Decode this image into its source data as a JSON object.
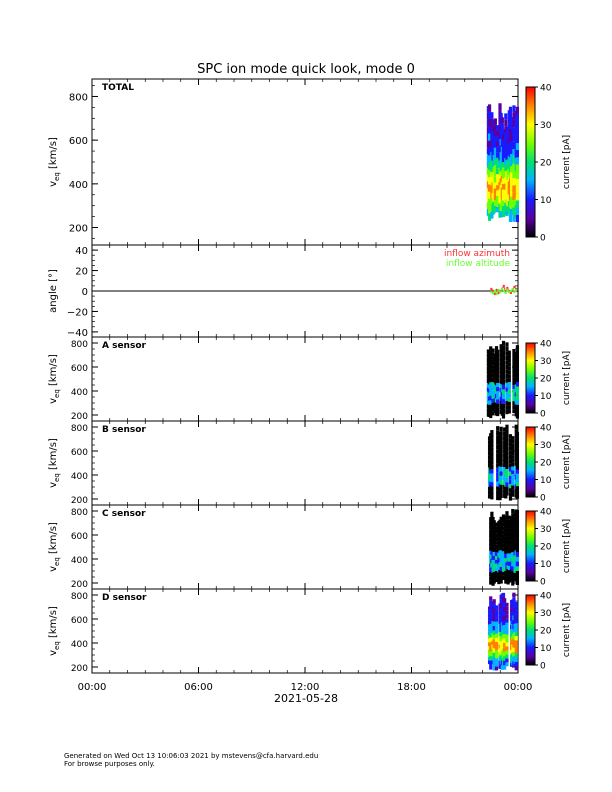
{
  "title": "SPC ion mode quick look, mode 0",
  "date_label": "2021-05-28",
  "footer": {
    "line1": "Generated on Wed Oct 13 10:06:03 2021 by mstevens@cfa.harvard.edu",
    "line2": "For browse purposes only."
  },
  "colorbar_label": "current [pA]",
  "colorbar_ticks": [
    "0",
    "10",
    "20",
    "30",
    "40"
  ],
  "chart_data": [
    {
      "type": "heatmap",
      "panel_label": "TOTAL",
      "ylabel": "v_eq [km/s]",
      "ylim": [
        120,
        880
      ],
      "yticks": [
        "200",
        "400",
        "600",
        "800"
      ],
      "xticks": [
        "00:00",
        "06:00",
        "12:00",
        "18:00",
        "00:00"
      ],
      "xlim_hours": [
        0,
        24
      ],
      "data_window_hours": [
        22.3,
        24.0
      ],
      "speed_band_km_s": [
        220,
        770
      ],
      "colorbar": {
        "min": 0,
        "max": 40,
        "unit": "pA"
      }
    },
    {
      "type": "line",
      "ylabel": "angle [°]",
      "ylim": [
        -45,
        45
      ],
      "yticks": [
        "−40",
        "−20",
        "0",
        "20",
        "40"
      ],
      "xticks": [
        "00:00",
        "06:00",
        "12:00",
        "18:00",
        "00:00"
      ],
      "series": [
        {
          "name": "inflow azimuth",
          "color": "#ff3333",
          "x_hours": [
            22.5,
            22.6,
            22.7,
            22.8,
            22.9,
            23.0,
            23.1,
            23.2,
            23.3,
            23.4,
            23.5,
            23.6,
            23.7,
            23.8,
            23.9
          ],
          "y_deg": [
            2,
            0,
            -3,
            1,
            -2,
            0,
            2,
            5,
            -1,
            3,
            0,
            -2,
            1,
            4,
            2
          ]
        },
        {
          "name": "inflow altitude",
          "color": "#66ff33",
          "x_hours": [
            22.5,
            22.6,
            22.7,
            22.8,
            22.9,
            23.0,
            23.1,
            23.2,
            23.3,
            23.4,
            23.5,
            23.6,
            23.7,
            23.8,
            23.9
          ],
          "y_deg": [
            -1,
            -2,
            0,
            -3,
            1,
            -1,
            2,
            0,
            -2,
            1,
            -1,
            0,
            2,
            -1,
            1
          ]
        }
      ]
    },
    {
      "type": "heatmap",
      "panel_label": "A sensor",
      "ylabel": "v_eq [km/s]",
      "ylim": [
        150,
        850
      ],
      "yticks": [
        "200",
        "400",
        "600",
        "800"
      ],
      "data_window_hours": [
        22.3,
        24.0
      ],
      "speed_band_km_s": [
        170,
        820
      ],
      "colorbar": {
        "min": 0,
        "max": 40,
        "unit": "pA"
      }
    },
    {
      "type": "heatmap",
      "panel_label": "B sensor",
      "ylabel": "v_eq [km/s]",
      "ylim": [
        150,
        850
      ],
      "yticks": [
        "200",
        "400",
        "600",
        "800"
      ],
      "data_window_hours": [
        22.3,
        24.0
      ],
      "speed_band_km_s": [
        170,
        820
      ],
      "colorbar": {
        "min": 0,
        "max": 40,
        "unit": "pA"
      }
    },
    {
      "type": "heatmap",
      "panel_label": "C sensor",
      "ylabel": "v_eq [km/s]",
      "ylim": [
        150,
        850
      ],
      "yticks": [
        "200",
        "400",
        "600",
        "800"
      ],
      "data_window_hours": [
        22.3,
        24.0
      ],
      "speed_band_km_s": [
        170,
        820
      ],
      "colorbar": {
        "min": 0,
        "max": 40,
        "unit": "pA"
      }
    },
    {
      "type": "heatmap",
      "panel_label": "D sensor",
      "ylabel": "v_eq [km/s]",
      "ylim": [
        150,
        850
      ],
      "yticks": [
        "200",
        "400",
        "600",
        "800"
      ],
      "xticks": [
        "00:00",
        "06:00",
        "12:00",
        "18:00",
        "00:00"
      ],
      "data_window_hours": [
        22.3,
        24.0
      ],
      "speed_band_km_s": [
        170,
        820
      ],
      "colorbar": {
        "min": 0,
        "max": 40,
        "unit": "pA"
      }
    }
  ]
}
